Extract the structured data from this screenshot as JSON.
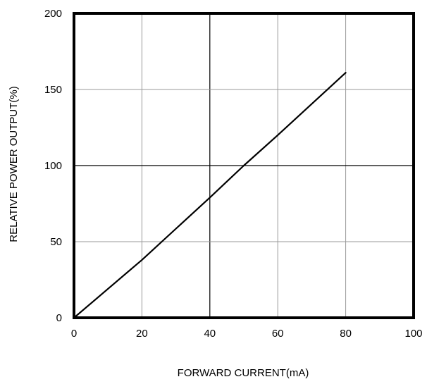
{
  "chart_data": {
    "type": "line",
    "xlabel": "FORWARD CURRENT(mA)",
    "ylabel": "RELATIVE POWER OUTPUT(%)",
    "xlim": [
      0,
      100
    ],
    "ylim": [
      0,
      200
    ],
    "xticks": [
      0,
      20,
      40,
      60,
      80,
      100
    ],
    "yticks": [
      0,
      50,
      100,
      150,
      200
    ],
    "grid": true,
    "series": [
      {
        "x": [
          0,
          20,
          40,
          50,
          60,
          80
        ],
        "y": [
          0,
          38,
          79,
          100,
          120,
          161
        ]
      }
    ],
    "colors": {
      "line": "#000000",
      "grid_major": "#000000",
      "grid_minor": "#999999",
      "frame": "#000000"
    }
  }
}
